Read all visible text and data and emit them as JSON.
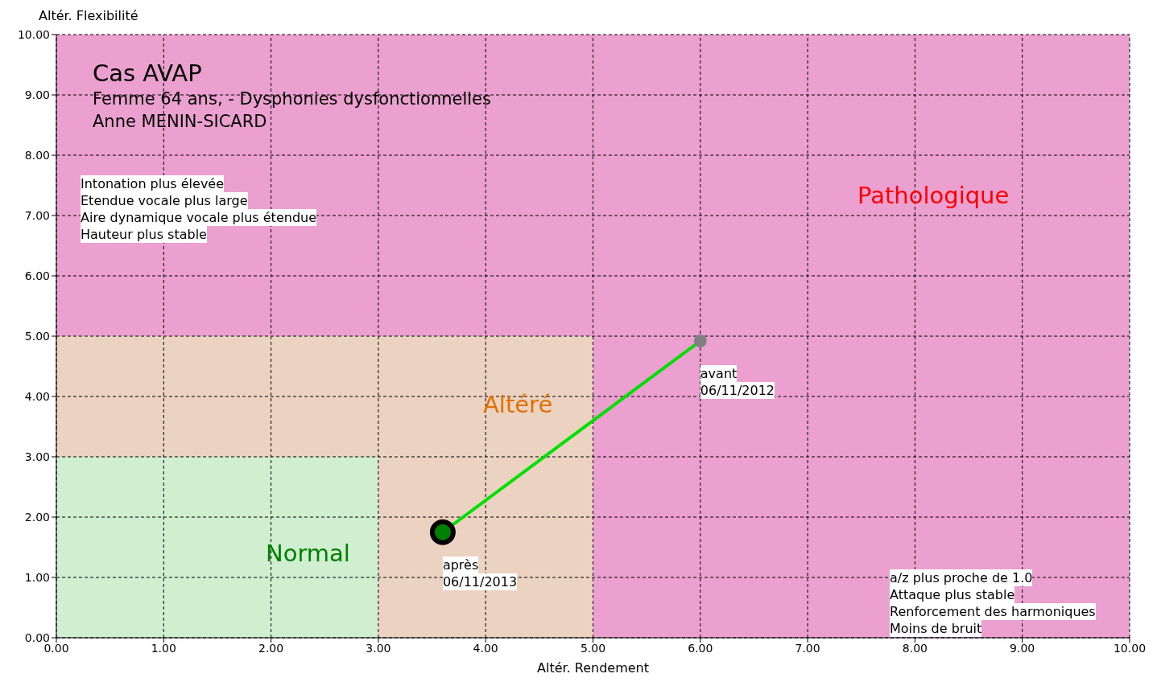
{
  "chart_data": {
    "type": "line",
    "title": "Cas AVAP",
    "subtitle": "Femme 64 ans, - Dysphonies dysfonctionnelles\nAnne MENIN-SICARD",
    "xlabel": "Altér. Rendement",
    "ylabel": "Altér. Flexibilité",
    "stacked": true,
    "series": [
      {
        "type": "area",
        "color": "#d0eed0",
        "x": [
          0,
          3,
          3,
          5,
          5,
          10
        ],
        "values": [
          3,
          3,
          0,
          0,
          0,
          0
        ]
      },
      {
        "type": "area",
        "color": "#ecd2c0",
        "x": [
          0,
          3,
          3,
          5,
          5,
          10
        ],
        "values": [
          2,
          2,
          5,
          5,
          0,
          0
        ]
      },
      {
        "type": "area",
        "color": "#eca0d0",
        "x": [
          0,
          3,
          3,
          5,
          5,
          10
        ],
        "values": [
          5,
          5,
          5,
          5,
          10,
          10
        ]
      },
      {
        "color": "#00e000",
        "x": [
          6.0,
          3.6
        ],
        "values": [
          4.92,
          1.75
        ],
        "colors": [
          "#808080",
          "#008000"
        ],
        "marker": "circle"
      }
    ],
    "annotations": [
      "Normal",
      "Altéré",
      "Pathologique",
      {
        "text": "avant\n06/11/2012",
        "x": 6.0,
        "y": 4.92
      },
      {
        "text": "après\n06/11/2013",
        "x": 3.6,
        "y": 1.75
      },
      "Intonation plus élevée\nEtendue vocale plus large\nAire dynamique vocale plus étendue\nHauteur plus stable",
      "a/z plus proche de 1.0\nAttaque plus stable\nRenforcement des harmoniques\nMoins de bruit"
    ],
    "xlim": [
      0,
      10
    ],
    "ylim": [
      0,
      10
    ],
    "xticks": [
      {
        "value": 0,
        "label": "0.00"
      },
      {
        "value": 1,
        "label": "1.00"
      },
      {
        "value": 2,
        "label": "2.00"
      },
      {
        "value": 3,
        "label": "3.00"
      },
      {
        "value": 4,
        "label": "4.00"
      },
      {
        "value": 5,
        "label": "5.00"
      },
      {
        "value": 6,
        "label": "6.00"
      },
      {
        "value": 7,
        "label": "7.00"
      },
      {
        "value": 8,
        "label": "8.00"
      },
      {
        "value": 9,
        "label": "9.00"
      },
      {
        "value": 10,
        "label": "10.00"
      }
    ],
    "yticks": [
      {
        "value": 0,
        "label": "0.00"
      },
      {
        "value": 1,
        "label": "1.00"
      },
      {
        "value": 2,
        "label": "2.00"
      },
      {
        "value": 3,
        "label": "3.00"
      },
      {
        "value": 4,
        "label": "4.00"
      },
      {
        "value": 5,
        "label": "5.00"
      },
      {
        "value": 6,
        "label": "6.00"
      },
      {
        "value": 7,
        "label": "7.00"
      },
      {
        "value": 8,
        "label": "8.00"
      },
      {
        "value": 9,
        "label": "9.00"
      },
      {
        "value": 10,
        "label": "10.00"
      }
    ],
    "grid": true,
    "line_style": "solid"
  }
}
